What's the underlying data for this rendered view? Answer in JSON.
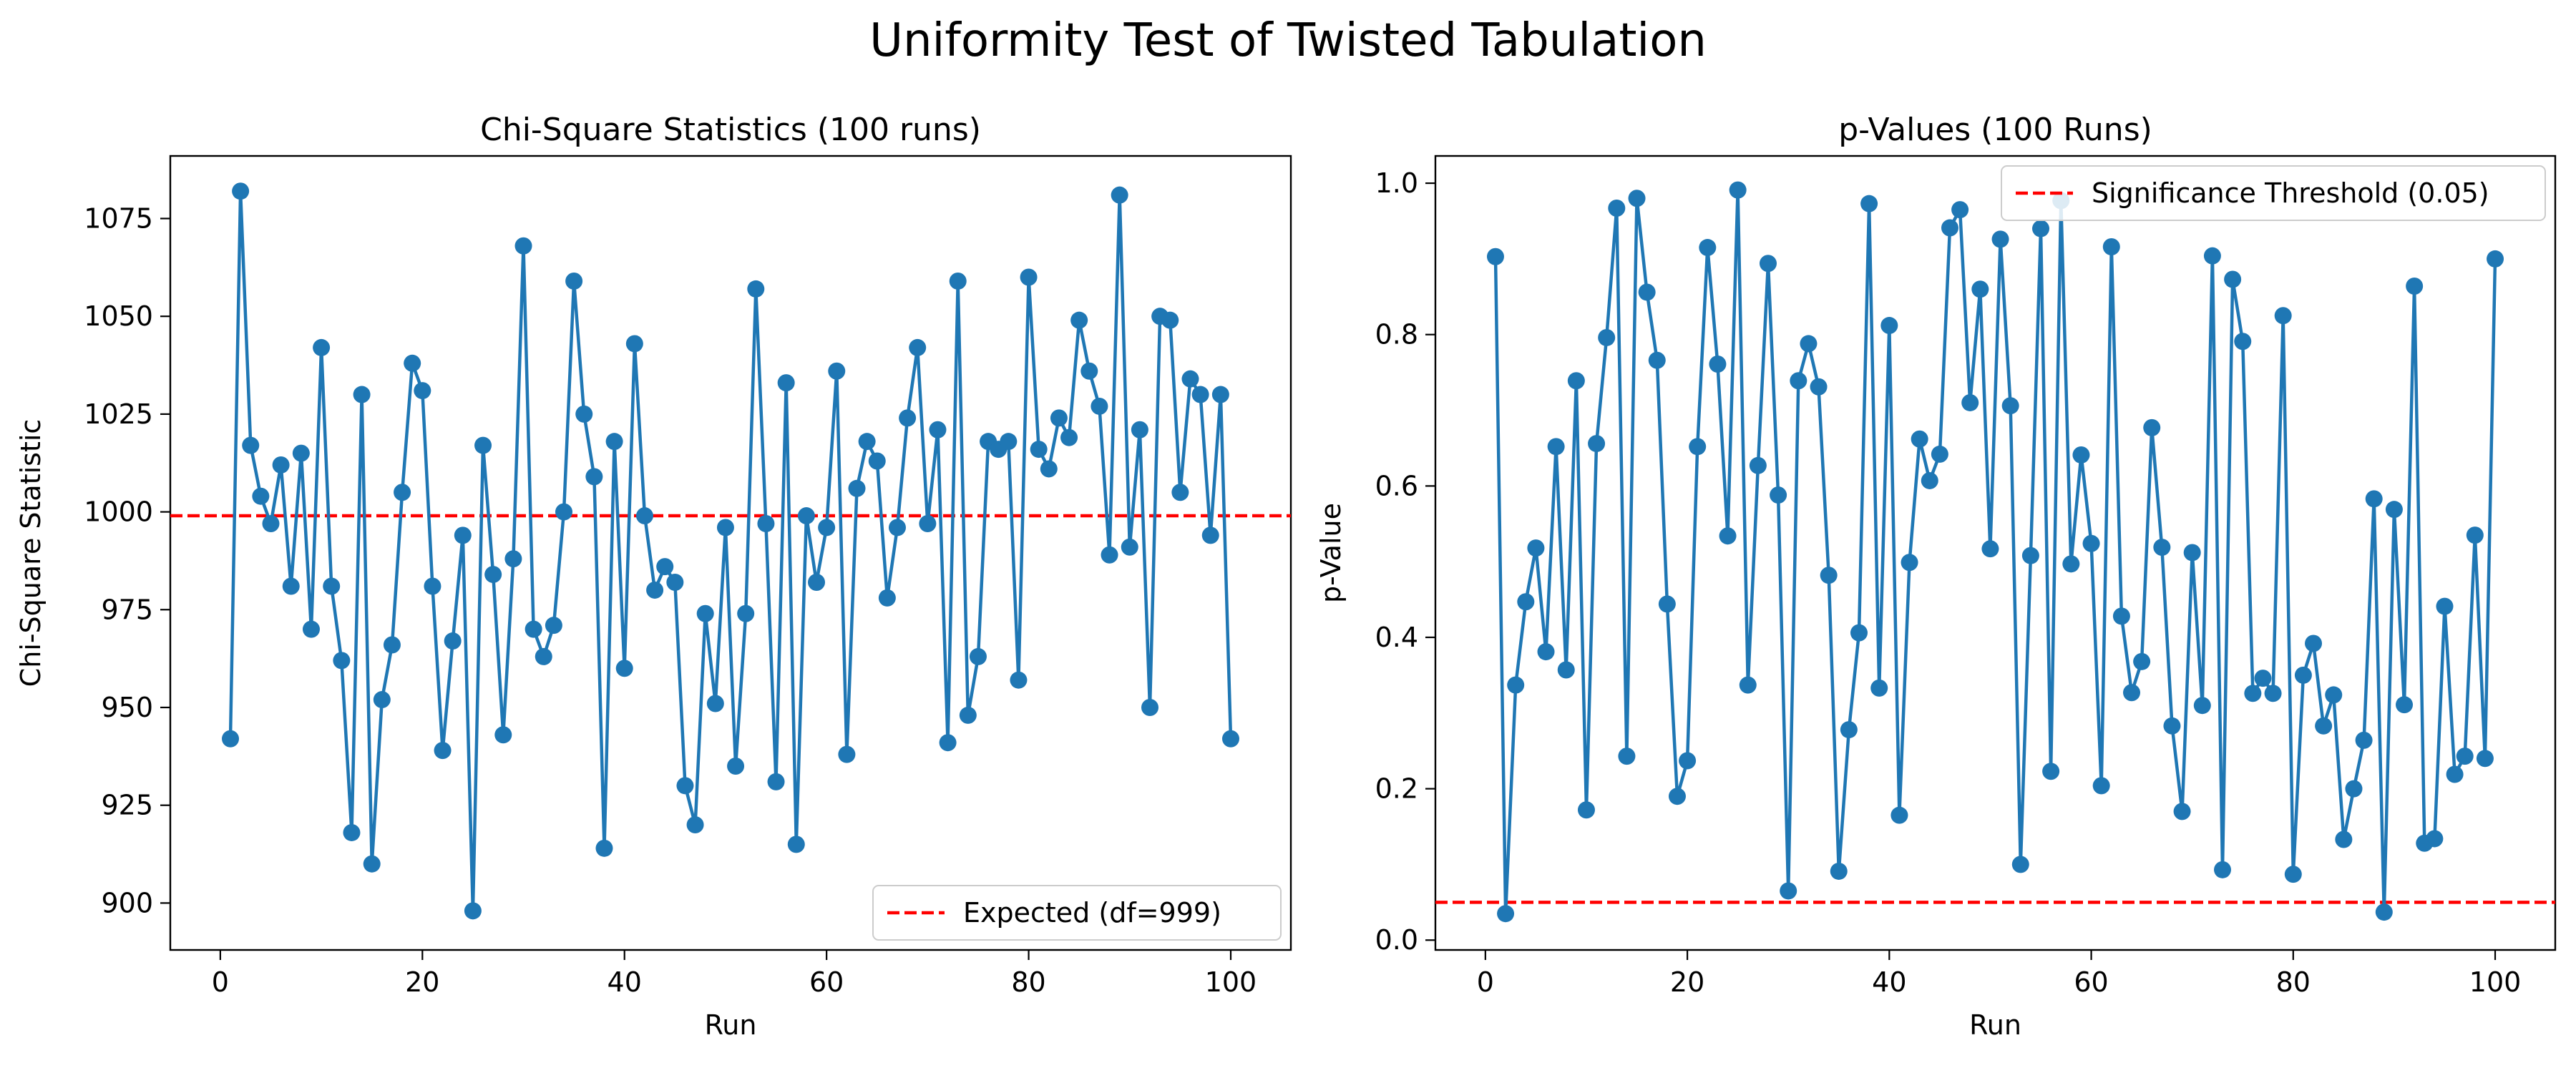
{
  "title": "Uniformity Test of Twisted Tabulation",
  "colors": {
    "series": "#1f77b4",
    "reference": "#ff0000",
    "axes": "#000000",
    "background": "#ffffff"
  },
  "chart_data": [
    {
      "type": "line",
      "title": "Chi-Square Statistics (100 runs)",
      "xlabel": "Run",
      "ylabel": "Chi-Square Statistic",
      "xlim": [
        -4.95,
        105.95
      ],
      "ylim": [
        888,
        1091
      ],
      "grid": false,
      "legend_position": "lower right",
      "xticks": [
        0,
        20,
        40,
        60,
        80,
        100
      ],
      "yticks": [
        900,
        925,
        950,
        975,
        1000,
        1025,
        1050,
        1075
      ],
      "reference_line": {
        "y": 999,
        "label": "Expected (df=999)",
        "style": "dashed"
      },
      "series": [
        {
          "marker": "circle",
          "x": [
            1,
            2,
            3,
            4,
            5,
            6,
            7,
            8,
            9,
            10,
            11,
            12,
            13,
            14,
            15,
            16,
            17,
            18,
            19,
            20,
            21,
            22,
            23,
            24,
            25,
            26,
            27,
            28,
            29,
            30,
            31,
            32,
            33,
            34,
            35,
            36,
            37,
            38,
            39,
            40,
            41,
            42,
            43,
            44,
            45,
            46,
            47,
            48,
            49,
            50,
            51,
            52,
            53,
            54,
            55,
            56,
            57,
            58,
            59,
            60,
            61,
            62,
            63,
            64,
            65,
            66,
            67,
            68,
            69,
            70,
            71,
            72,
            73,
            74,
            75,
            76,
            77,
            78,
            79,
            80,
            81,
            82,
            83,
            84,
            85,
            86,
            87,
            88,
            89,
            90,
            91,
            92,
            93,
            94,
            95,
            96,
            97,
            98,
            99,
            100
          ],
          "values": [
            942,
            1082,
            1017,
            1004,
            997,
            1012,
            981,
            1015,
            970,
            1042,
            981,
            962,
            918,
            1030,
            910,
            952,
            966,
            1005,
            1038,
            1031,
            981,
            939,
            967,
            994,
            898,
            1017,
            984,
            943,
            988,
            1068,
            970,
            963,
            971,
            1000,
            1059,
            1025,
            1009,
            914,
            1018,
            960,
            1043,
            999,
            980,
            986,
            982,
            930,
            920,
            974,
            951,
            996,
            935,
            974,
            1057,
            997,
            931,
            1033,
            915,
            999,
            982,
            996,
            1036,
            938,
            1006,
            1018,
            1013,
            978,
            996,
            1024,
            1042,
            997,
            1021,
            941,
            1059,
            948,
            963,
            1018,
            1016,
            1018,
            957,
            1060,
            1016,
            1011,
            1024,
            1019,
            1049,
            1036,
            1027,
            989,
            1081,
            991,
            1021,
            950,
            1050,
            1049,
            1005,
            1034,
            1030,
            994,
            1030,
            942
          ]
        }
      ]
    },
    {
      "type": "line",
      "title": "p-Values (100 Runs)",
      "xlabel": "Run",
      "ylabel": "p-Value",
      "xlim": [
        -4.95,
        105.95
      ],
      "ylim": [
        -0.013,
        1.036
      ],
      "grid": false,
      "legend_position": "upper right",
      "xticks": [
        0,
        20,
        40,
        60,
        80,
        100
      ],
      "yticks": [
        0.0,
        0.2,
        0.4,
        0.6,
        0.8,
        1.0
      ],
      "reference_line": {
        "y": 0.05,
        "label": "Significance Threshold (0.05)",
        "style": "dashed"
      },
      "series": [
        {
          "marker": "circle",
          "x": [
            1,
            2,
            3,
            4,
            5,
            6,
            7,
            8,
            9,
            10,
            11,
            12,
            13,
            14,
            15,
            16,
            17,
            18,
            19,
            20,
            21,
            22,
            23,
            24,
            25,
            26,
            27,
            28,
            29,
            30,
            31,
            32,
            33,
            34,
            35,
            36,
            37,
            38,
            39,
            40,
            41,
            42,
            43,
            44,
            45,
            46,
            47,
            48,
            49,
            50,
            51,
            52,
            53,
            54,
            55,
            56,
            57,
            58,
            59,
            60,
            61,
            62,
            63,
            64,
            65,
            66,
            67,
            68,
            69,
            70,
            71,
            72,
            73,
            74,
            75,
            76,
            77,
            78,
            79,
            80,
            81,
            82,
            83,
            84,
            85,
            86,
            87,
            88,
            89,
            90,
            91,
            92,
            93,
            94,
            95,
            96,
            97,
            98,
            99,
            100
          ],
          "values": [
            0.903,
            0.035,
            0.337,
            0.447,
            0.518,
            0.381,
            0.652,
            0.357,
            0.739,
            0.172,
            0.656,
            0.796,
            0.967,
            0.243,
            0.98,
            0.856,
            0.766,
            0.444,
            0.19,
            0.237,
            0.652,
            0.915,
            0.761,
            0.534,
            0.991,
            0.337,
            0.627,
            0.894,
            0.588,
            0.065,
            0.739,
            0.788,
            0.731,
            0.482,
            0.091,
            0.278,
            0.406,
            0.973,
            0.333,
            0.812,
            0.165,
            0.499,
            0.662,
            0.607,
            0.642,
            0.941,
            0.965,
            0.71,
            0.86,
            0.517,
            0.926,
            0.706,
            0.1,
            0.508,
            0.94,
            0.223,
            0.977,
            0.497,
            0.641,
            0.524,
            0.204,
            0.916,
            0.428,
            0.327,
            0.368,
            0.677,
            0.519,
            0.283,
            0.17,
            0.512,
            0.31,
            0.904,
            0.093,
            0.873,
            0.791,
            0.326,
            0.346,
            0.326,
            0.825,
            0.087,
            0.35,
            0.392,
            0.283,
            0.324,
            0.133,
            0.2,
            0.264,
            0.583,
            0.037,
            0.569,
            0.311,
            0.864,
            0.128,
            0.134,
            0.441,
            0.219,
            0.243,
            0.535,
            0.24,
            0.9
          ]
        }
      ]
    }
  ]
}
